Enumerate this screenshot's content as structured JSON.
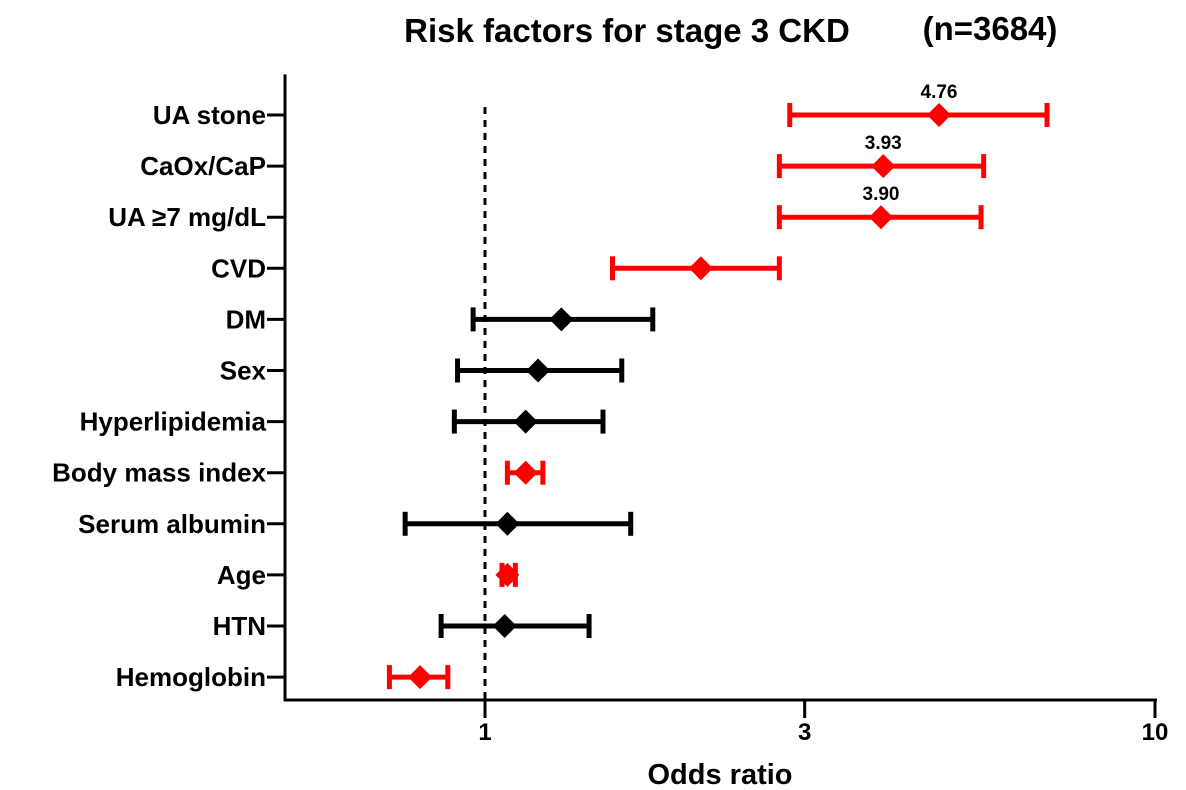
{
  "chart_data": {
    "type": "forest",
    "title": "Risk factors for stage 3 CKD",
    "subtitle": "(n=3684)",
    "xlabel": "Odds ratio",
    "x_scale": "log",
    "xlim": [
      0.42,
      10
    ],
    "x_ticks": [
      {
        "value": 1,
        "label": "1"
      },
      {
        "value": 3,
        "label": "3"
      },
      {
        "value": 10,
        "label": "10"
      }
    ],
    "reference_line": 1,
    "colors": {
      "significant": "#ff0000",
      "nonsignificant": "#000000"
    },
    "rows": [
      {
        "label": "UA stone",
        "or": 4.76,
        "lo": 2.85,
        "hi": 6.9,
        "significant": true,
        "data_label": "4.76"
      },
      {
        "label": "CaOx/CaP",
        "or": 3.93,
        "lo": 2.75,
        "hi": 5.55,
        "significant": true,
        "data_label": "3.93"
      },
      {
        "label": "UA ≥7 mg/dL",
        "or": 3.9,
        "lo": 2.75,
        "hi": 5.5,
        "significant": true,
        "data_label": "3.90"
      },
      {
        "label": "CVD",
        "or": 2.1,
        "lo": 1.55,
        "hi": 2.75,
        "significant": true
      },
      {
        "label": "DM",
        "or": 1.3,
        "lo": 0.96,
        "hi": 1.78,
        "significant": false
      },
      {
        "label": "Sex",
        "or": 1.2,
        "lo": 0.91,
        "hi": 1.6,
        "significant": false
      },
      {
        "label": "Hyperlipidemia",
        "or": 1.15,
        "lo": 0.9,
        "hi": 1.5,
        "significant": false
      },
      {
        "label": "Body mass index",
        "or": 1.15,
        "lo": 1.08,
        "hi": 1.22,
        "significant": true
      },
      {
        "label": "Serum albumin",
        "or": 1.08,
        "lo": 0.76,
        "hi": 1.65,
        "significant": false
      },
      {
        "label": "Age",
        "or": 1.08,
        "lo": 1.06,
        "hi": 1.11,
        "significant": true
      },
      {
        "label": "HTN",
        "or": 1.07,
        "lo": 0.86,
        "hi": 1.43,
        "significant": false
      },
      {
        "label": "Hemoglobin",
        "or": 0.8,
        "lo": 0.72,
        "hi": 0.88,
        "significant": true
      }
    ]
  }
}
